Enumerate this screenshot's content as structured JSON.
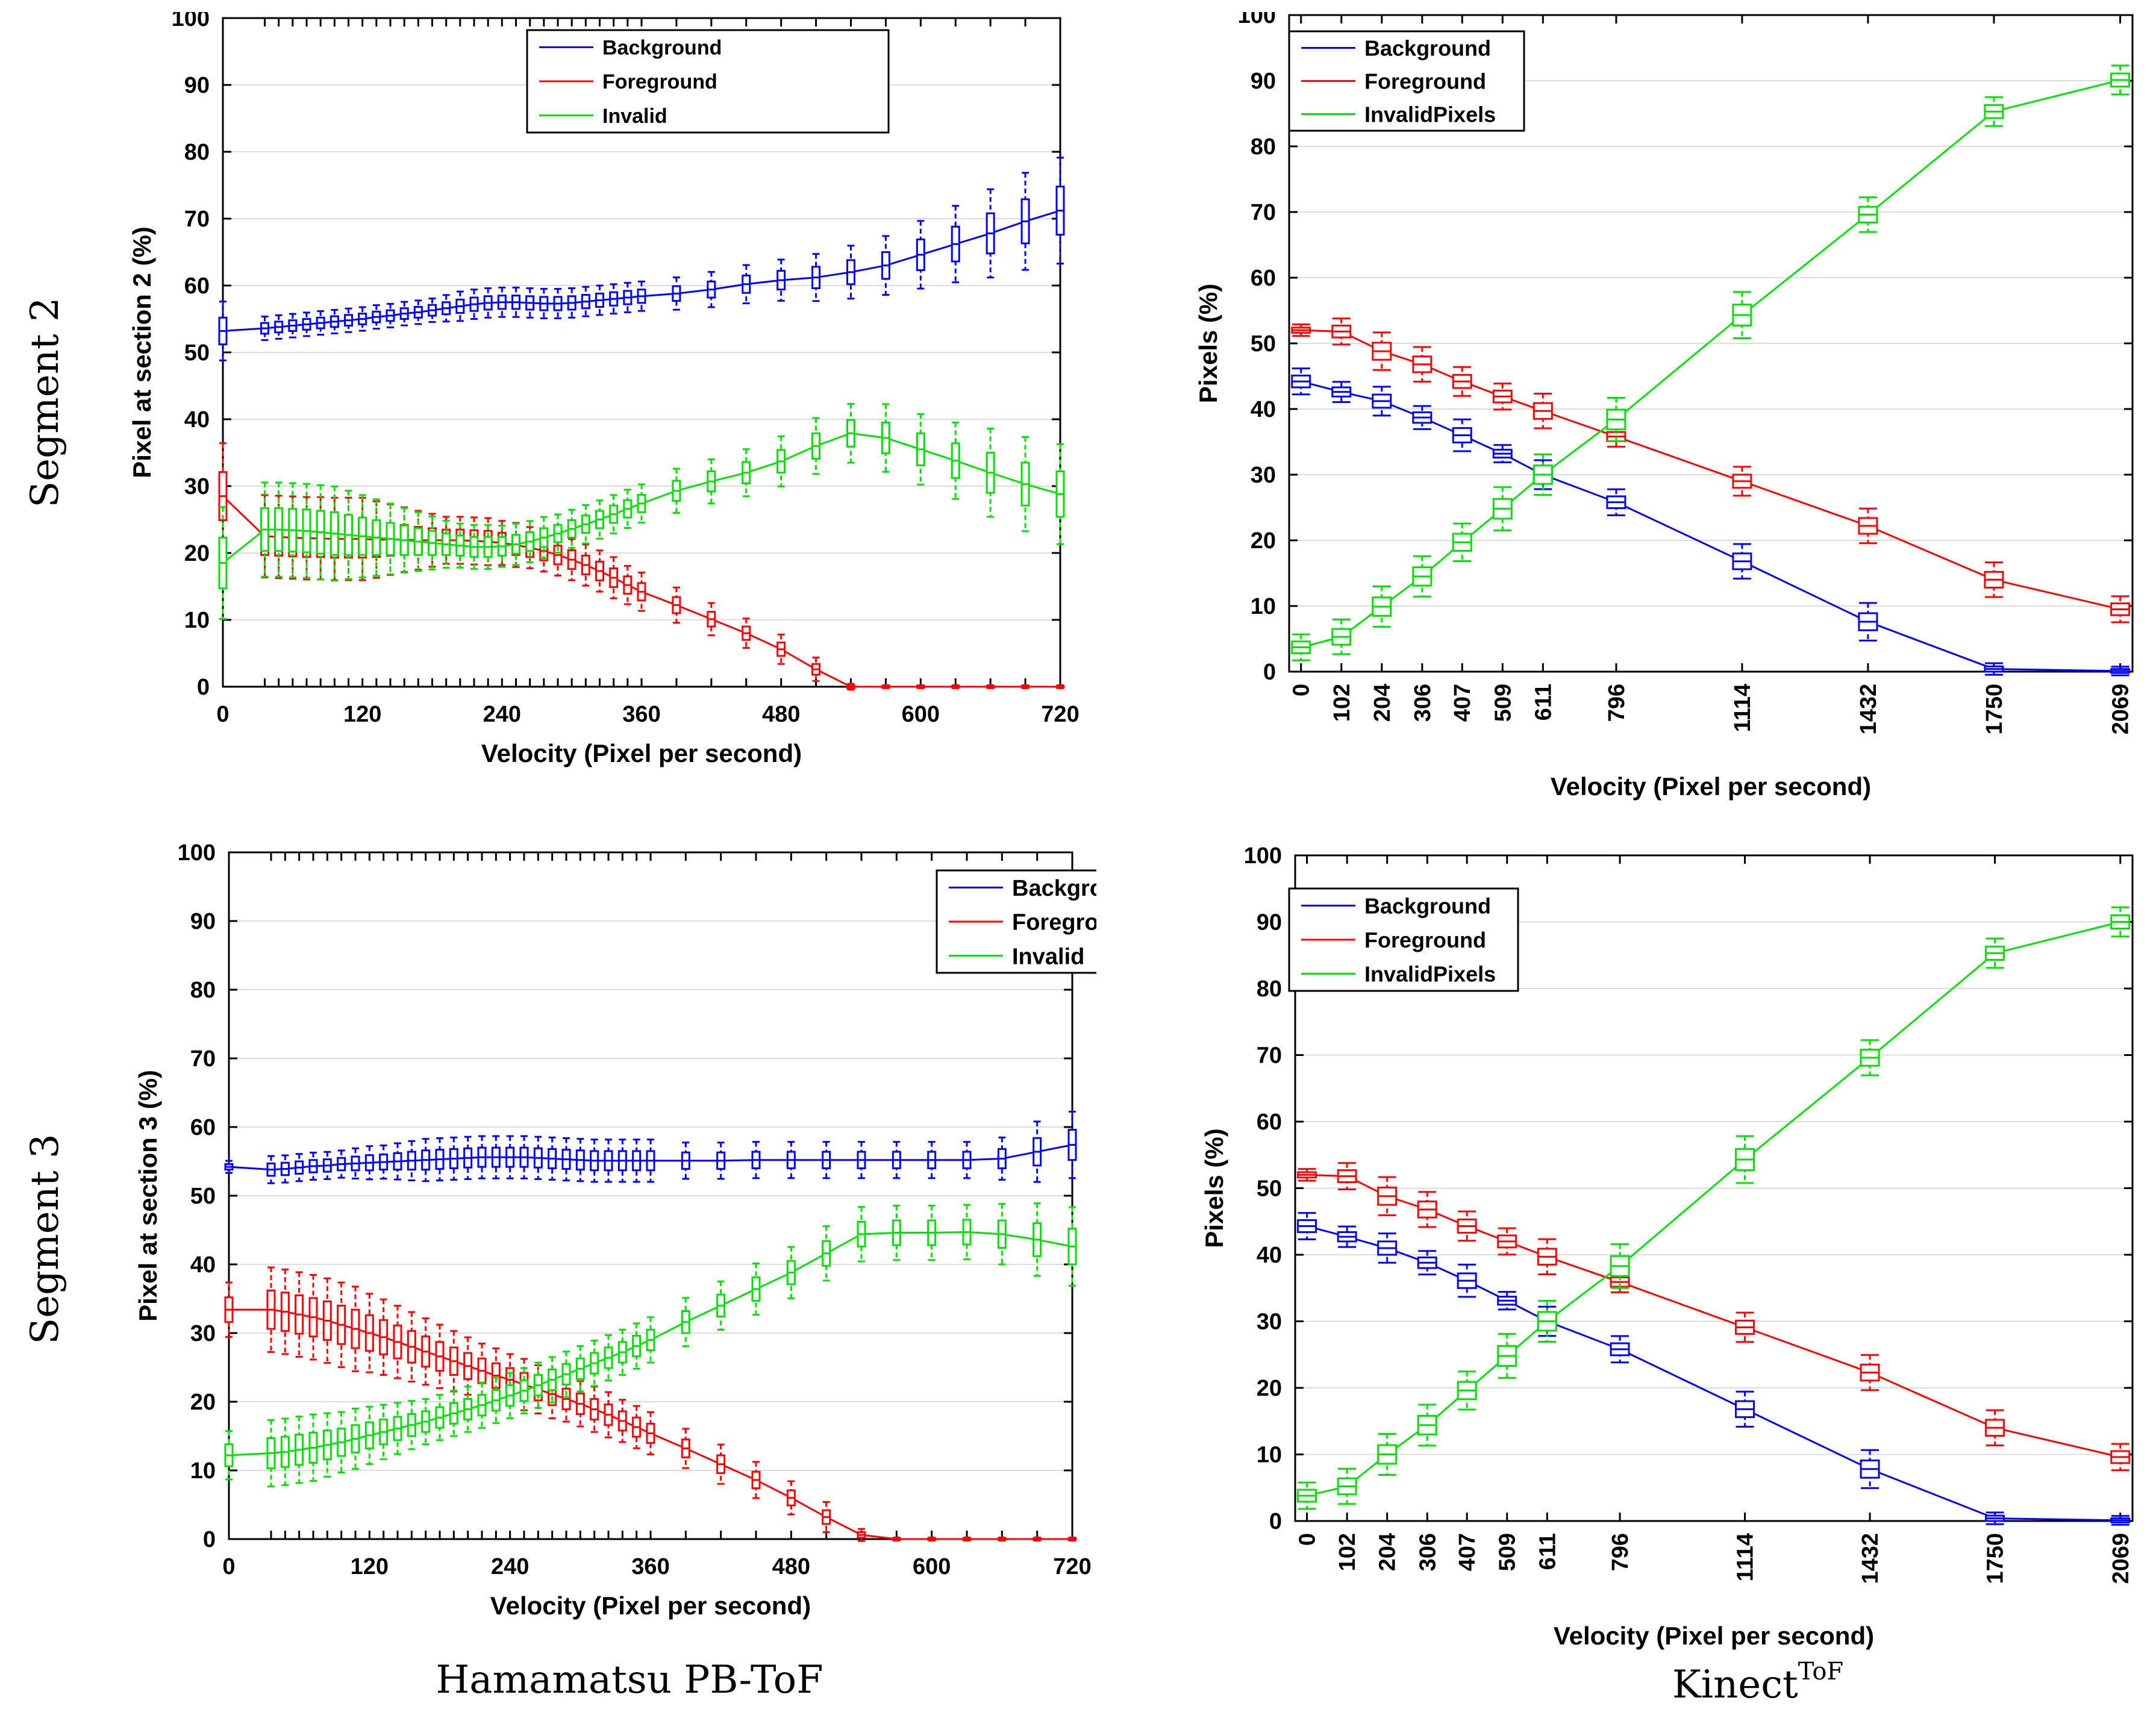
{
  "row_labels": [
    "Segment 2",
    "Segment 3"
  ],
  "column_labels": {
    "left": "Hamamatsu PB-ToF",
    "right_base": "Kinect",
    "right_super": "ToF"
  },
  "colors": {
    "background": "#0000ff",
    "foreground": "#ff0000",
    "invalid": "#00e000",
    "grid": "#dcdcdc"
  },
  "chart_data": [
    {
      "id": "seg2_hamamatsu",
      "type": "box",
      "ylabel": "Pixel  at section 2 (%)",
      "xlabel": "Velocity (Pixel per second)",
      "ylim": [
        0,
        100
      ],
      "yticks": [
        0,
        10,
        20,
        30,
        40,
        50,
        60,
        70,
        80,
        90,
        100
      ],
      "xlim": [
        0,
        720
      ],
      "xticks": [
        0,
        120,
        240,
        360,
        480,
        600,
        720
      ],
      "legend_position": "top-center",
      "x": [
        0,
        36,
        48,
        60,
        72,
        84,
        96,
        108,
        120,
        132,
        144,
        156,
        168,
        180,
        192,
        204,
        216,
        228,
        240,
        252,
        264,
        276,
        288,
        300,
        312,
        324,
        336,
        348,
        360,
        390,
        420,
        450,
        480,
        510,
        540,
        570,
        600,
        630,
        660,
        690,
        720
      ],
      "series": [
        {
          "name": "Background",
          "color_key": "background",
          "values": [
            53.2,
            53.6,
            53.8,
            54.0,
            54.2,
            54.4,
            54.6,
            54.8,
            55.0,
            55.3,
            55.5,
            55.8,
            56.0,
            56.3,
            56.6,
            56.9,
            57.2,
            57.4,
            57.5,
            57.5,
            57.4,
            57.3,
            57.3,
            57.4,
            57.6,
            57.8,
            58.0,
            58.2,
            58.4,
            58.8,
            59.4,
            60.2,
            60.8,
            61.2,
            62.0,
            63.0,
            64.6,
            66.2,
            67.8,
            69.6,
            71.2
          ]
        },
        {
          "name": "Foreground",
          "color_key": "foreground",
          "values": [
            28.5,
            22.5,
            22.4,
            22.3,
            22.2,
            22.2,
            22.1,
            22.1,
            22.1,
            22.0,
            22.0,
            22.0,
            21.9,
            21.9,
            21.9,
            21.9,
            21.8,
            21.7,
            21.5,
            21.2,
            20.8,
            20.3,
            19.7,
            19.0,
            18.2,
            17.3,
            16.3,
            15.2,
            14.2,
            12.2,
            10.1,
            8.0,
            5.6,
            2.6,
            0.0,
            0.0,
            0.0,
            0.0,
            0.0,
            0.0,
            0.0
          ]
        },
        {
          "name": "Invalid",
          "color_key": "invalid",
          "values": [
            18.5,
            23.5,
            23.5,
            23.4,
            23.3,
            23.1,
            22.9,
            22.7,
            22.5,
            22.3,
            22.1,
            21.9,
            21.7,
            21.5,
            21.3,
            21.1,
            20.9,
            20.9,
            21.0,
            21.3,
            21.7,
            22.3,
            22.9,
            23.6,
            24.3,
            25.0,
            25.8,
            26.6,
            27.4,
            29.3,
            30.7,
            32.0,
            33.7,
            36.0,
            37.9,
            37.2,
            35.5,
            33.8,
            32.0,
            30.3,
            28.8
          ]
        }
      ],
      "spread": [
        [
          2.0,
          0.8,
          0.8,
          0.8,
          0.8,
          0.8,
          0.8,
          0.8,
          0.8,
          0.8,
          0.8,
          0.8,
          0.8,
          0.8,
          0.9,
          1.0,
          1.0,
          1.0,
          1.0,
          1.0,
          1.0,
          1.0,
          1.0,
          1.0,
          1.0,
          1.0,
          1.0,
          1.0,
          1.0,
          1.1,
          1.2,
          1.3,
          1.4,
          1.6,
          1.8,
          2.0,
          2.3,
          2.6,
          3.0,
          3.3,
          3.6
        ],
        [
          3.6,
          2.8,
          2.8,
          2.8,
          2.8,
          2.8,
          2.8,
          2.8,
          2.8,
          2.6,
          2.4,
          2.2,
          2.0,
          1.8,
          1.6,
          1.6,
          1.6,
          1.6,
          1.5,
          1.5,
          1.4,
          1.4,
          1.4,
          1.4,
          1.4,
          1.4,
          1.4,
          1.3,
          1.3,
          1.2,
          1.1,
          1.0,
          1.0,
          0.8,
          0.2,
          0.1,
          0.1,
          0.1,
          0.1,
          0.1,
          0.1
        ],
        [
          3.8,
          3.2,
          3.2,
          3.2,
          3.2,
          3.2,
          3.2,
          3.0,
          2.8,
          2.6,
          2.4,
          2.2,
          2.0,
          1.8,
          1.6,
          1.5,
          1.5,
          1.5,
          1.4,
          1.4,
          1.4,
          1.4,
          1.3,
          1.3,
          1.3,
          1.3,
          1.3,
          1.3,
          1.3,
          1.5,
          1.5,
          1.6,
          1.7,
          1.9,
          2.0,
          2.3,
          2.4,
          2.6,
          3.0,
          3.2,
          3.4
        ]
      ]
    },
    {
      "id": "seg2_kinect",
      "type": "box",
      "ylabel": "Pixels (%)",
      "xlabel": "Velocity (Pixel per second)",
      "ylim": [
        0,
        100
      ],
      "yticks": [
        0,
        10,
        20,
        30,
        40,
        50,
        60,
        70,
        80,
        90,
        100
      ],
      "xlim": [
        -30,
        2100
      ],
      "xticks": [
        0,
        102,
        204,
        306,
        407,
        509,
        611,
        796,
        1114,
        1432,
        1750,
        2069
      ],
      "x_tick_rotation": -90,
      "legend_position": "top-left",
      "x": [
        0,
        102,
        204,
        306,
        407,
        509,
        611,
        796,
        1114,
        1432,
        1750,
        2069
      ],
      "series": [
        {
          "name": "Background",
          "color_key": "background",
          "values": [
            44.2,
            42.6,
            41.2,
            38.7,
            36.0,
            33.2,
            30.0,
            25.8,
            16.8,
            7.6,
            0.4,
            0.1
          ]
        },
        {
          "name": "Foreground",
          "color_key": "foreground",
          "values": [
            52.0,
            51.8,
            48.8,
            46.8,
            44.2,
            41.9,
            39.7,
            35.8,
            29.0,
            22.2,
            14.0,
            9.5
          ]
        },
        {
          "name": "InvalidPixels",
          "color_key": "invalid",
          "values": [
            3.7,
            5.3,
            9.9,
            14.5,
            19.7,
            24.8,
            30.0,
            38.4,
            54.3,
            69.6,
            85.3,
            90.1
          ]
        }
      ],
      "spread": [
        [
          0.9,
          0.7,
          1.0,
          0.8,
          1.1,
          0.6,
          1.0,
          0.9,
          1.2,
          1.3,
          0.4,
          0.3
        ],
        [
          0.4,
          0.9,
          1.3,
          1.2,
          1.0,
          0.9,
          1.2,
          0.7,
          1.0,
          1.2,
          1.2,
          0.9
        ],
        [
          0.9,
          1.2,
          1.4,
          1.4,
          1.3,
          1.5,
          1.4,
          1.5,
          1.6,
          1.2,
          1.0,
          1.0
        ]
      ]
    },
    {
      "id": "seg3_hamamatsu",
      "type": "box",
      "ylabel": "Pixel  at section 3 (%)",
      "xlabel": "Velocity (Pixel per second)",
      "ylim": [
        0,
        100
      ],
      "yticks": [
        0,
        10,
        20,
        30,
        40,
        50,
        60,
        70,
        80,
        90,
        100
      ],
      "xlim": [
        0,
        720
      ],
      "xticks": [
        0,
        120,
        240,
        360,
        480,
        600,
        720
      ],
      "legend_position": "top-right",
      "x": [
        0,
        36,
        48,
        60,
        72,
        84,
        96,
        108,
        120,
        132,
        144,
        156,
        168,
        180,
        192,
        204,
        216,
        228,
        240,
        252,
        264,
        276,
        288,
        300,
        312,
        324,
        336,
        348,
        360,
        390,
        420,
        450,
        480,
        510,
        540,
        570,
        600,
        630,
        660,
        690,
        720
      ],
      "series": [
        {
          "name": "Background",
          "color_key": "background",
          "values": [
            54.2,
            53.8,
            53.9,
            54.1,
            54.3,
            54.4,
            54.6,
            54.7,
            54.8,
            54.9,
            55.0,
            55.1,
            55.2,
            55.3,
            55.4,
            55.5,
            55.6,
            55.6,
            55.6,
            55.6,
            55.5,
            55.4,
            55.3,
            55.2,
            55.1,
            55.1,
            55.1,
            55.1,
            55.1,
            55.1,
            55.1,
            55.2,
            55.2,
            55.2,
            55.2,
            55.2,
            55.2,
            55.2,
            55.4,
            56.4,
            57.4
          ]
        },
        {
          "name": "Foreground",
          "color_key": "foreground",
          "values": [
            33.4,
            33.4,
            33.1,
            32.7,
            32.3,
            31.8,
            31.2,
            30.6,
            30.0,
            29.4,
            28.7,
            28.0,
            27.3,
            26.6,
            25.9,
            25.2,
            24.5,
            23.8,
            23.2,
            22.5,
            21.8,
            21.1,
            20.4,
            19.7,
            18.9,
            18.1,
            17.2,
            16.3,
            15.4,
            13.2,
            10.9,
            8.6,
            6.0,
            3.2,
            0.6,
            0.0,
            0.0,
            0.0,
            0.0,
            0.0,
            0.0
          ]
        },
        {
          "name": "Invalid",
          "color_key": "invalid",
          "values": [
            12.2,
            12.5,
            12.7,
            13.0,
            13.3,
            13.7,
            14.1,
            14.6,
            15.1,
            15.6,
            16.1,
            16.6,
            17.1,
            17.7,
            18.3,
            18.9,
            19.5,
            20.2,
            20.9,
            21.6,
            22.4,
            23.2,
            24.0,
            24.8,
            25.6,
            26.4,
            27.2,
            28.1,
            29.0,
            31.6,
            34.0,
            36.4,
            38.8,
            41.6,
            44.4,
            44.6,
            44.6,
            44.7,
            44.4,
            43.6,
            42.6
          ]
        }
      ],
      "spread": [
        [
          0.4,
          0.9,
          0.9,
          0.9,
          0.9,
          0.9,
          0.9,
          1.0,
          1.1,
          1.1,
          1.2,
          1.3,
          1.4,
          1.4,
          1.4,
          1.4,
          1.4,
          1.4,
          1.4,
          1.4,
          1.4,
          1.4,
          1.4,
          1.4,
          1.4,
          1.4,
          1.4,
          1.4,
          1.4,
          1.2,
          1.2,
          1.2,
          1.2,
          1.2,
          1.2,
          1.2,
          1.2,
          1.2,
          1.4,
          2.0,
          2.2
        ],
        [
          1.8,
          2.8,
          2.8,
          2.8,
          2.8,
          2.8,
          2.8,
          2.8,
          2.6,
          2.5,
          2.4,
          2.3,
          2.2,
          2.1,
          2.0,
          1.9,
          1.8,
          1.8,
          1.7,
          1.7,
          1.6,
          1.6,
          1.5,
          1.5,
          1.5,
          1.5,
          1.4,
          1.4,
          1.4,
          1.3,
          1.3,
          1.2,
          1.1,
          1.0,
          0.4,
          0.1,
          0.1,
          0.1,
          0.1,
          0.1,
          0.1
        ],
        [
          1.6,
          2.2,
          2.2,
          2.2,
          2.2,
          2.1,
          2.0,
          2.0,
          1.9,
          1.8,
          1.7,
          1.6,
          1.5,
          1.5,
          1.5,
          1.5,
          1.5,
          1.5,
          1.5,
          1.5,
          1.5,
          1.5,
          1.5,
          1.5,
          1.5,
          1.5,
          1.5,
          1.5,
          1.5,
          1.6,
          1.6,
          1.7,
          1.7,
          1.8,
          1.8,
          1.8,
          1.8,
          1.8,
          2.0,
          2.4,
          2.6
        ]
      ]
    },
    {
      "id": "seg3_kinect",
      "type": "box",
      "ylabel": "Pixels (%)",
      "xlabel": "Velocity (Pixel per second)",
      "ylim": [
        0,
        100
      ],
      "yticks": [
        0,
        10,
        20,
        30,
        40,
        50,
        60,
        70,
        80,
        90,
        100
      ],
      "xlim": [
        -30,
        2100
      ],
      "xticks": [
        0,
        102,
        204,
        306,
        407,
        509,
        611,
        796,
        1114,
        1432,
        1750,
        2069
      ],
      "x_tick_rotation": -90,
      "legend_position": "top-left",
      "x": [
        0,
        102,
        204,
        306,
        407,
        509,
        611,
        796,
        1114,
        1432,
        1750,
        2069
      ],
      "series": [
        {
          "name": "Background",
          "color_key": "background",
          "values": [
            44.3,
            42.7,
            41.0,
            38.8,
            36.1,
            33.1,
            30.0,
            25.8,
            16.8,
            7.8,
            0.4,
            0.1
          ]
        },
        {
          "name": "Foreground",
          "color_key": "foreground",
          "values": [
            52.0,
            51.8,
            48.8,
            46.8,
            44.3,
            42.0,
            39.7,
            35.9,
            29.1,
            22.3,
            14.0,
            9.6
          ]
        },
        {
          "name": "InvalidPixels",
          "color_key": "invalid",
          "values": [
            3.8,
            5.2,
            10.0,
            14.4,
            19.6,
            24.8,
            30.0,
            38.3,
            54.3,
            69.6,
            85.3,
            90.0
          ]
        }
      ],
      "spread": [
        [
          0.9,
          0.7,
          1.0,
          0.8,
          1.1,
          0.6,
          1.0,
          0.9,
          1.2,
          1.3,
          0.4,
          0.3
        ],
        [
          0.4,
          0.9,
          1.3,
          1.2,
          1.0,
          0.9,
          1.2,
          0.7,
          1.0,
          1.2,
          1.2,
          0.9
        ],
        [
          0.9,
          1.2,
          1.4,
          1.4,
          1.3,
          1.5,
          1.4,
          1.5,
          1.6,
          1.2,
          1.0,
          1.0
        ]
      ]
    }
  ]
}
